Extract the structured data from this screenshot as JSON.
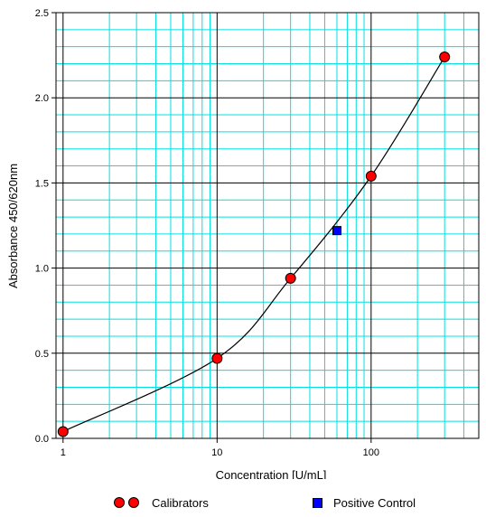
{
  "chart_data": {
    "type": "scatter",
    "title": "",
    "xlabel": "Concentration [U/mL]",
    "ylabel": "Absorbance 450/620nm",
    "x_scale": "log",
    "xlim": [
      0.9,
      500
    ],
    "ylim": [
      0,
      2.5
    ],
    "x_ticks": [
      1,
      10,
      100
    ],
    "x_tick_labels": [
      "1",
      "10",
      "100"
    ],
    "y_ticks": [
      0,
      0.5,
      1.0,
      1.5,
      2.0,
      2.5
    ],
    "y_tick_labels": [
      "0.0",
      "0.5",
      "1.0",
      "1.5",
      "2.0",
      "2.5"
    ],
    "grid": true,
    "legend_position": "bottom",
    "series": [
      {
        "name": "Calibrators",
        "marker": "circle",
        "color": "#ff0000",
        "x": [
          1,
          10,
          30,
          100,
          300
        ],
        "y": [
          0.04,
          0.47,
          0.94,
          1.54,
          2.24
        ]
      },
      {
        "name": "Positive Control",
        "marker": "square",
        "color": "#0000ff",
        "x": [
          60
        ],
        "y": [
          1.22
        ]
      }
    ],
    "curve": {
      "type": "fit",
      "through": "Calibrators",
      "color": "#000000"
    }
  },
  "colors": {
    "minor_grid": "#00e0e0",
    "major_grid": "#000000"
  }
}
